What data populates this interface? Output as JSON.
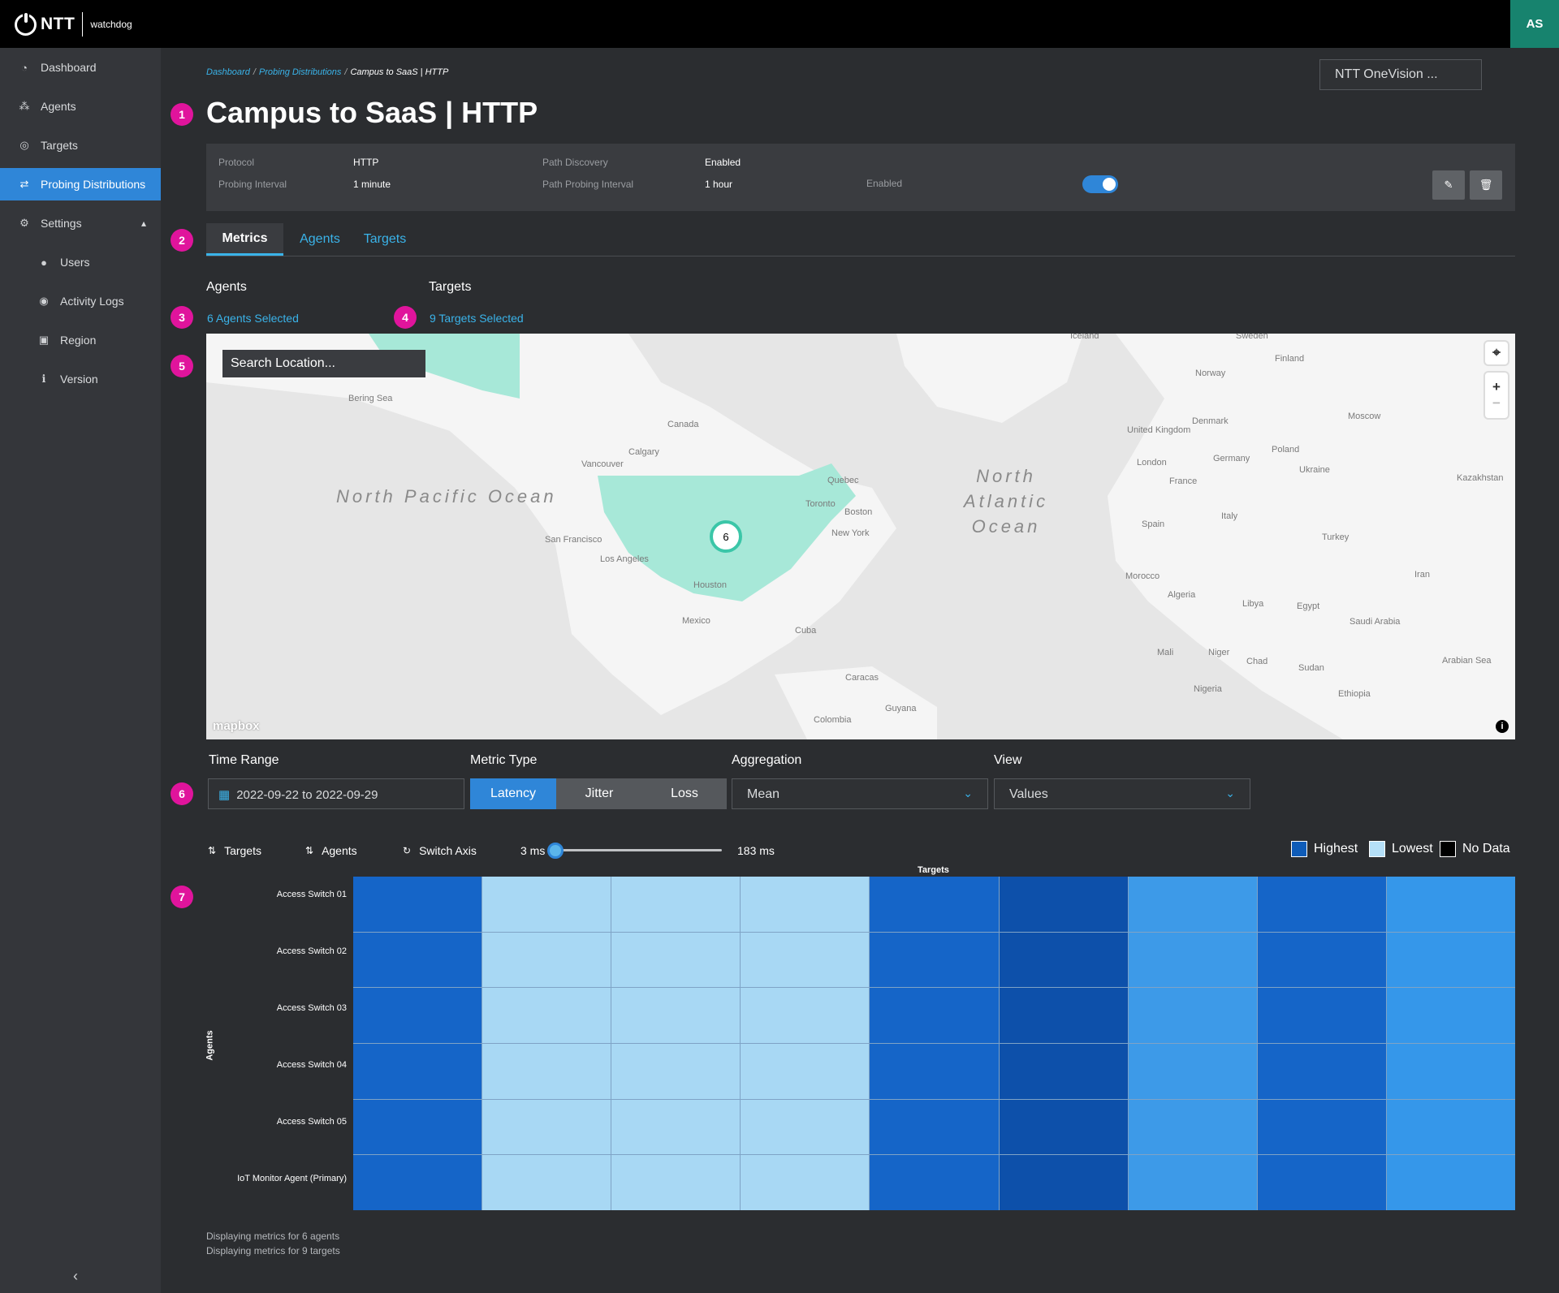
{
  "app": {
    "brand": "NTT",
    "name": "watchdog",
    "user_initials": "AS"
  },
  "sidebar": {
    "items": [
      {
        "label": "Dashboard",
        "icon": "dashboard-icon"
      },
      {
        "label": "Agents",
        "icon": "agents-icon"
      },
      {
        "label": "Targets",
        "icon": "targets-icon"
      },
      {
        "label": "Probing Distributions",
        "icon": "exchange-icon",
        "active": true
      },
      {
        "label": "Settings",
        "icon": "gear-icon"
      },
      {
        "label": "Users",
        "icon": "users-icon"
      },
      {
        "label": "Activity Logs",
        "icon": "eye-icon"
      },
      {
        "label": "Region",
        "icon": "region-icon"
      },
      {
        "label": "Version",
        "icon": "info-icon"
      }
    ]
  },
  "breadcrumb": {
    "items": [
      "Dashboard",
      "Probing Distributions"
    ],
    "current": "Campus to SaaS | HTTP"
  },
  "org_selector": {
    "value": "NTT OneVision ..."
  },
  "markers": [
    "1",
    "2",
    "3",
    "4",
    "5",
    "6",
    "7"
  ],
  "page": {
    "title": "Campus to SaaS | HTTP"
  },
  "info": {
    "protocol_label": "Protocol",
    "protocol_value": "HTTP",
    "interval_label": "Probing Interval",
    "interval_value": "1 minute",
    "path_discovery_label": "Path Discovery",
    "path_discovery_value": "Enabled",
    "path_interval_label": "Path Probing Interval",
    "path_interval_value": "1 hour",
    "enabled_label": "Enabled",
    "enabled": true
  },
  "tabs": [
    "Metrics",
    "Agents",
    "Targets"
  ],
  "selection": {
    "agents_label": "Agents",
    "agents_link": "6 Agents Selected",
    "targets_label": "Targets",
    "targets_link": "9 Targets Selected"
  },
  "map": {
    "search_placeholder": "Search Location...",
    "cluster_count": "6",
    "attribution": "mapbox",
    "oceans": [
      "North Pacific Ocean",
      "North Atlantic Ocean"
    ],
    "labels": [
      "Canada",
      "Calgary",
      "Vancouver",
      "San Francisco",
      "Los Angeles",
      "Houston",
      "Mexico",
      "Cuba",
      "Quebec",
      "Toronto",
      "Boston",
      "New York",
      "Iceland",
      "Sweden",
      "Finland",
      "Norway",
      "Denmark",
      "United Kingdom",
      "London",
      "Germany",
      "Poland",
      "France",
      "Spain",
      "Italy",
      "Ukraine",
      "Moscow",
      "Kazakhstan",
      "Turkey",
      "Iran",
      "Morocco",
      "Algeria",
      "Libya",
      "Egypt",
      "Saudi Arabia",
      "Mali",
      "Niger",
      "Chad",
      "Sudan",
      "Nigeria",
      "Ethiopia",
      "Bering Sea",
      "Arabian Sea",
      "Colombia",
      "Caracas",
      "Guyana"
    ]
  },
  "filters": {
    "time_range_label": "Time Range",
    "time_range_value": "2022-09-22 to 2022-09-29",
    "metric_type_label": "Metric Type",
    "metric_types": [
      "Latency",
      "Jitter",
      "Loss"
    ],
    "metric_selected": "Latency",
    "aggregation_label": "Aggregation",
    "aggregation_value": "Mean",
    "view_label": "View",
    "view_value": "Values"
  },
  "controls": {
    "targets_sort": "Targets",
    "agents_sort": "Agents",
    "switch_axis": "Switch Axis",
    "slider_min": "3 ms",
    "slider_max": "183 ms",
    "slider_fraction": 0.0
  },
  "legend": [
    {
      "label": "Highest",
      "color": "#0f5cb8"
    },
    {
      "label": "Lowest",
      "color": "#b5e0f8"
    },
    {
      "label": "No Data",
      "color": "#000000"
    }
  ],
  "heatmap": {
    "x_title": "Targets",
    "y_title": "Agents",
    "rows": [
      "Access Switch 01",
      "Access Switch 02",
      "Access Switch 03",
      "Access Switch 04",
      "Access Switch 05",
      "IoT Monitor Agent (Primary)"
    ],
    "column_colors": [
      "#1565c8",
      "#a8d8f4",
      "#a8d8f4",
      "#a8d8f4",
      "#1565c8",
      "#0d50aa",
      "#3d9ae8",
      "#1565c8",
      "#3597ea"
    ]
  },
  "footer": {
    "agents_note": "Displaying metrics for 6 agents",
    "targets_note": "Displaying metrics for 9 targets"
  },
  "colors": {
    "accent": "#3ab3e9",
    "active": "#2f86d8",
    "marker": "#e0149c",
    "teal": "#17836e"
  }
}
